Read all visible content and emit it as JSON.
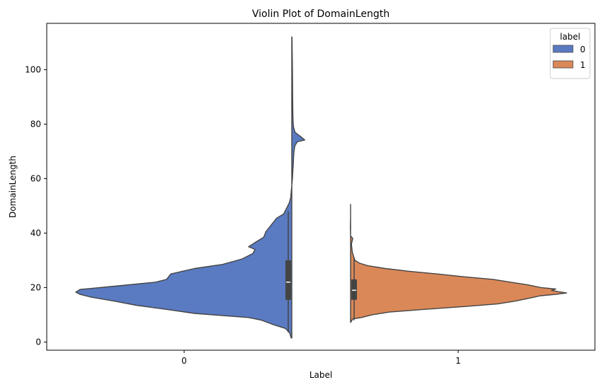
{
  "chart_data": {
    "type": "violin",
    "title": "Violin Plot of DomainLength",
    "xlabel": "Label",
    "ylabel": "DomainLength",
    "categories": [
      "0",
      "1"
    ],
    "ylim": [
      -3,
      117
    ],
    "yticks": [
      0,
      20,
      40,
      60,
      80,
      100
    ],
    "grid": false,
    "legend": {
      "title": "label",
      "position": "top-right",
      "entries": [
        {
          "label": "0",
          "color": "#5A7BC2"
        },
        {
          "label": "1",
          "color": "#DB8858"
        }
      ]
    },
    "series": [
      {
        "name": "0",
        "category": "0",
        "side": "left",
        "color": "#5A7BC2",
        "density_width": [
          [
            1.5,
            0.003
          ],
          [
            3.5,
            0.01
          ],
          [
            5,
            0.03
          ],
          [
            6.5,
            0.09
          ],
          [
            8,
            0.14
          ],
          [
            9,
            0.2
          ],
          [
            10.5,
            0.45
          ],
          [
            12,
            0.58
          ],
          [
            13.5,
            0.72
          ],
          [
            15,
            0.82
          ],
          [
            16.5,
            0.93
          ],
          [
            17.5,
            0.98
          ],
          [
            18.3,
            1.0
          ],
          [
            19.3,
            0.98
          ],
          [
            20.5,
            0.82
          ],
          [
            22,
            0.63
          ],
          [
            23,
            0.58
          ],
          [
            25,
            0.56
          ],
          [
            27,
            0.45
          ],
          [
            28.5,
            0.32
          ],
          [
            30.5,
            0.23
          ],
          [
            32.5,
            0.18
          ],
          [
            34,
            0.17
          ],
          [
            35,
            0.2
          ],
          [
            36.5,
            0.17
          ],
          [
            38.5,
            0.13
          ],
          [
            40.5,
            0.12
          ],
          [
            42.5,
            0.1
          ],
          [
            44,
            0.085
          ],
          [
            45.5,
            0.07
          ],
          [
            47,
            0.038
          ],
          [
            49,
            0.025
          ],
          [
            51,
            0.012
          ],
          [
            53,
            0.005
          ],
          [
            55,
            0.003
          ],
          [
            57.5,
            0.0
          ],
          [
            60,
            -0.003
          ],
          [
            63,
            -0.005
          ],
          [
            65,
            -0.007
          ],
          [
            67.5,
            -0.008
          ],
          [
            70,
            -0.01
          ],
          [
            72,
            -0.014
          ],
          [
            73.5,
            -0.025
          ],
          [
            74.2,
            -0.06
          ],
          [
            75.5,
            -0.04
          ],
          [
            77,
            -0.015
          ],
          [
            79,
            -0.008
          ],
          [
            81,
            -0.006
          ],
          [
            84,
            -0.005
          ],
          [
            90,
            -0.004
          ],
          [
            100,
            -0.003
          ],
          [
            112,
            -0.001
          ]
        ],
        "box": {
          "q1": 15.5,
          "median": 22,
          "q3": 30,
          "whisker_low": 3.5,
          "whisker_high": 48
        }
      },
      {
        "name": "1",
        "category": "1",
        "side": "right",
        "color": "#DB8858",
        "density_width": [
          [
            7.2,
            0.0
          ],
          [
            8.5,
            0.01
          ],
          [
            9,
            0.05
          ],
          [
            10,
            0.1
          ],
          [
            11,
            0.18
          ],
          [
            12,
            0.34
          ],
          [
            13,
            0.52
          ],
          [
            14,
            0.68
          ],
          [
            15,
            0.76
          ],
          [
            16,
            0.82
          ],
          [
            17,
            0.88
          ],
          [
            17.5,
            0.95
          ],
          [
            18,
            1.0
          ],
          [
            18.5,
            0.96
          ],
          [
            19,
            0.93
          ],
          [
            19.5,
            0.95
          ],
          [
            20,
            0.88
          ],
          [
            21,
            0.82
          ],
          [
            22,
            0.74
          ],
          [
            23,
            0.66
          ],
          [
            24,
            0.52
          ],
          [
            25,
            0.4
          ],
          [
            26,
            0.27
          ],
          [
            27,
            0.16
          ],
          [
            28,
            0.08
          ],
          [
            29,
            0.04
          ],
          [
            30,
            0.02
          ],
          [
            33,
            0.008
          ],
          [
            36,
            0.004
          ],
          [
            38,
            0.01
          ],
          [
            39,
            0.0
          ],
          [
            42,
            -0.001
          ],
          [
            46,
            0.0
          ],
          [
            50.5,
            0.0
          ]
        ],
        "box": {
          "q1": 15.5,
          "median": 19,
          "q3": 23,
          "whisker_low": 8,
          "whisker_high": 31
        }
      }
    ]
  }
}
